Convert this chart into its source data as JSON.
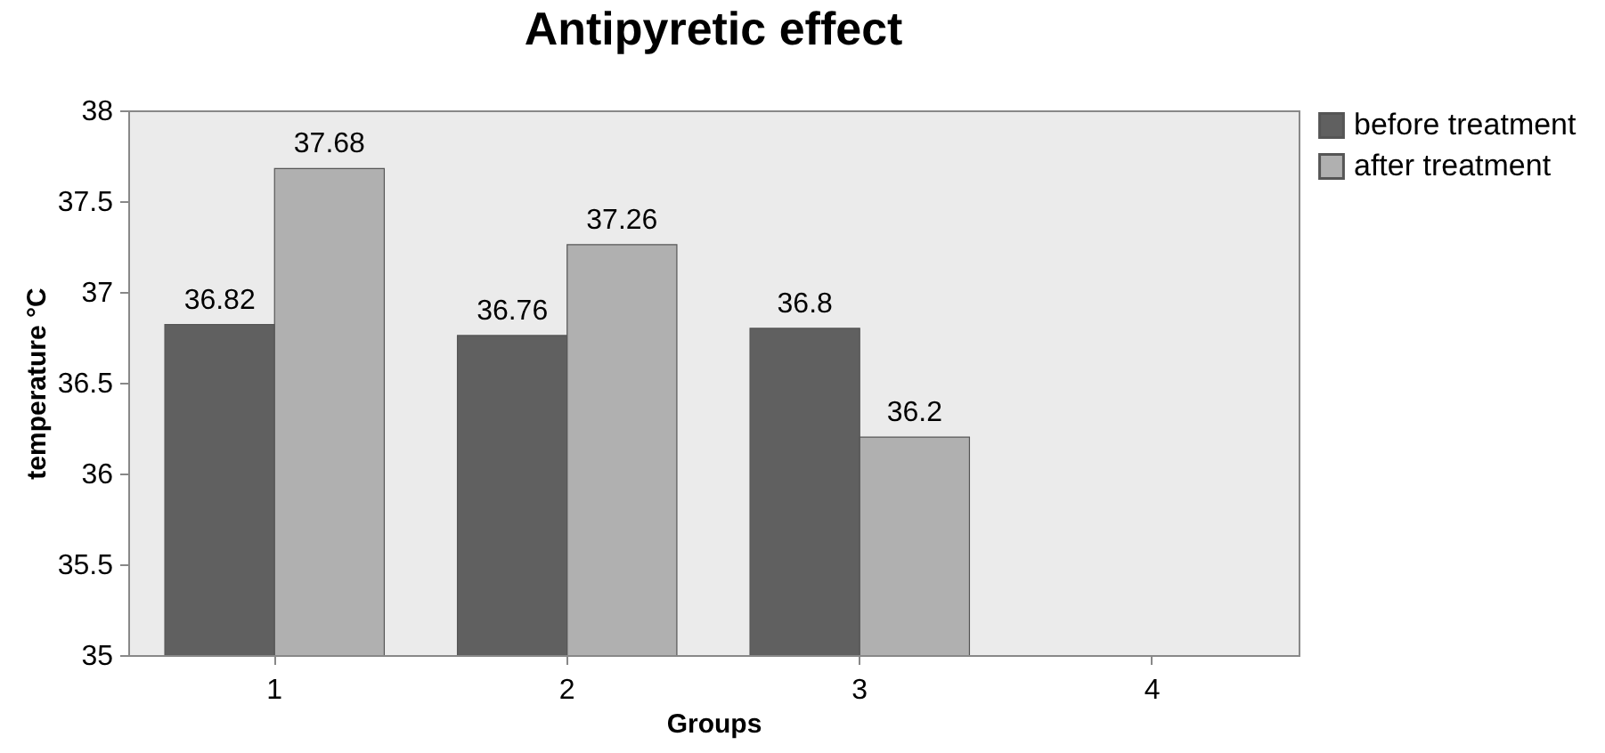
{
  "chart_data": {
    "type": "bar",
    "title": "Antipyretic effect",
    "xlabel": "Groups",
    "ylabel": "temperature °C",
    "categories": [
      "1",
      "2",
      "3",
      "4"
    ],
    "series": [
      {
        "name": "before treatment",
        "color": "#606060",
        "values": [
          36.82,
          36.76,
          36.8,
          null
        ]
      },
      {
        "name": "after treatment",
        "color": "#b0b0b0",
        "values": [
          37.68,
          37.26,
          36.2,
          null
        ]
      }
    ],
    "ylim": [
      35,
      38
    ],
    "yticks": [
      35,
      35.5,
      36,
      36.5,
      37,
      37.5,
      38
    ],
    "data_labels": true,
    "legend": "right"
  }
}
